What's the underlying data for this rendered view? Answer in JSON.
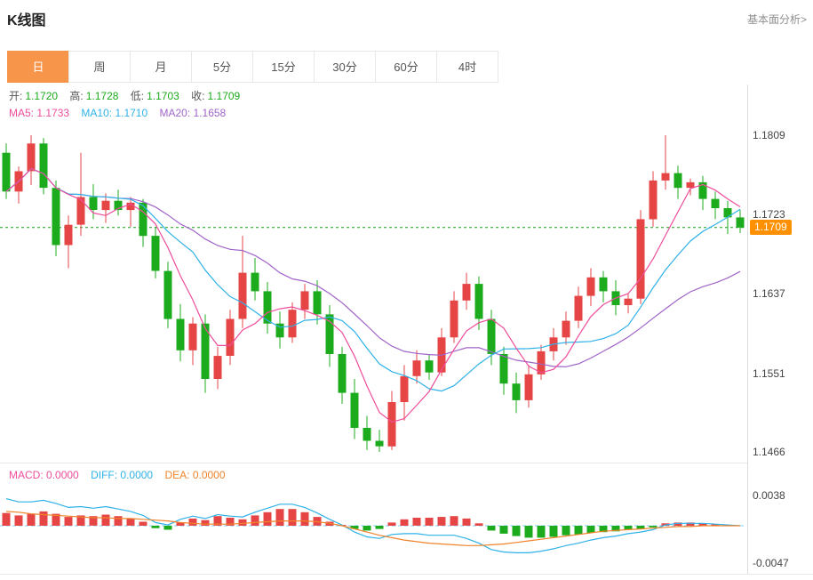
{
  "colors": {
    "accent_orange": "#f7954a",
    "up_red": "#e64545",
    "down_green": "#1cab1c",
    "ma5_pink": "#ef4d9b",
    "ma10_cyan": "#2fb2e8",
    "ma20_purple": "#a064c8",
    "macd_pink": "#ef4d9b",
    "diff_cyan": "#2fb2e8",
    "dea_orange": "#f0832a",
    "price_line_green": "#16a216",
    "badge_orange": "#ff9100",
    "zero_line_blue": "#7fd0f5"
  },
  "header": {
    "title": "K线图",
    "analysis_link": "基本面分析>"
  },
  "tabs": [
    {
      "label": "日",
      "active": true
    },
    {
      "label": "周",
      "active": false
    },
    {
      "label": "月",
      "active": false
    },
    {
      "label": "5分",
      "active": false
    },
    {
      "label": "15分",
      "active": false
    },
    {
      "label": "30分",
      "active": false
    },
    {
      "label": "60分",
      "active": false
    },
    {
      "label": "4时",
      "active": false
    }
  ],
  "main_chart": {
    "legend": {
      "open_label": "开:",
      "open_value": "1.1720",
      "high_label": "高:",
      "high_value": "1.1728",
      "low_label": "低:",
      "low_value": "1.1703",
      "close_label": "收:",
      "close_value": "1.1709",
      "ma5_label": "MA5:",
      "ma5_value": "1.1733",
      "ma10_label": "MA10:",
      "ma10_value": "1.1710",
      "ma20_label": "MA20:",
      "ma20_value": "1.1658"
    },
    "y_axis": [
      "1.1809",
      "1.1723",
      "1.1637",
      "1.1551",
      "1.1466"
    ],
    "price_badge": "1.1709"
  },
  "macd_panel": {
    "legend": {
      "macd_label": "MACD:",
      "macd_value": "0.0000",
      "diff_label": "DIFF:",
      "diff_value": "0.0000",
      "dea_label": "DEA:",
      "dea_value": "0.0000"
    },
    "y_axis": [
      "0.0038",
      "-0.0047"
    ]
  },
  "chart_data": [
    {
      "type": "candlestick",
      "panel": "price",
      "interval": "日",
      "y_axis_ticks": [
        1.1809,
        1.1723,
        1.1637,
        1.1551,
        1.1466
      ],
      "current_price": 1.1709,
      "last_candle": {
        "open": 1.172,
        "high": 1.1728,
        "low": 1.1703,
        "close": 1.1709
      },
      "ma_values": {
        "MA5": 1.1733,
        "MA10": 1.171,
        "MA20": 1.1658
      },
      "candles_ohlc": [
        [
          1.179,
          1.18,
          1.174,
          1.1748
        ],
        [
          1.1748,
          1.1775,
          1.1735,
          1.177
        ],
        [
          1.177,
          1.1809,
          1.1755,
          1.18
        ],
        [
          1.18,
          1.1806,
          1.1745,
          1.1752
        ],
        [
          1.1752,
          1.176,
          1.1678,
          1.169
        ],
        [
          1.169,
          1.1722,
          1.1665,
          1.1712
        ],
        [
          1.1712,
          1.179,
          1.17,
          1.1742
        ],
        [
          1.1742,
          1.1756,
          1.1718,
          1.1728
        ],
        [
          1.1728,
          1.1746,
          1.1714,
          1.1738
        ],
        [
          1.1738,
          1.175,
          1.1722,
          1.1728
        ],
        [
          1.1728,
          1.1742,
          1.171,
          1.1736
        ],
        [
          1.1736,
          1.174,
          1.1688,
          1.17
        ],
        [
          1.17,
          1.171,
          1.1654,
          1.1662
        ],
        [
          1.1662,
          1.1672,
          1.16,
          1.161
        ],
        [
          1.161,
          1.1626,
          1.1564,
          1.1576
        ],
        [
          1.1576,
          1.1612,
          1.156,
          1.1605
        ],
        [
          1.1605,
          1.1615,
          1.153,
          1.1545
        ],
        [
          1.1545,
          1.158,
          1.1534,
          1.157
        ],
        [
          1.157,
          1.162,
          1.156,
          1.161
        ],
        [
          1.161,
          1.17,
          1.16,
          1.166
        ],
        [
          1.166,
          1.1676,
          1.163,
          1.164
        ],
        [
          1.164,
          1.165,
          1.1594,
          1.1605
        ],
        [
          1.1605,
          1.1618,
          1.1578,
          1.159
        ],
        [
          1.159,
          1.1628,
          1.1584,
          1.162
        ],
        [
          1.162,
          1.1648,
          1.161,
          1.164
        ],
        [
          1.164,
          1.1652,
          1.1604,
          1.1615
        ],
        [
          1.1615,
          1.1625,
          1.1558,
          1.1572
        ],
        [
          1.1572,
          1.158,
          1.1518,
          1.153
        ],
        [
          1.153,
          1.1545,
          1.148,
          1.1492
        ],
        [
          1.1492,
          1.1505,
          1.1468,
          1.1478
        ],
        [
          1.1478,
          1.149,
          1.1466,
          1.1472
        ],
        [
          1.1472,
          1.1532,
          1.1468,
          1.152
        ],
        [
          1.152,
          1.156,
          1.15,
          1.1548
        ],
        [
          1.1548,
          1.1576,
          1.154,
          1.1565
        ],
        [
          1.1565,
          1.1572,
          1.1544,
          1.1552
        ],
        [
          1.1552,
          1.16,
          1.1548,
          1.159
        ],
        [
          1.159,
          1.164,
          1.1584,
          1.163
        ],
        [
          1.163,
          1.166,
          1.162,
          1.1648
        ],
        [
          1.1648,
          1.1656,
          1.1598,
          1.161
        ],
        [
          1.161,
          1.162,
          1.156,
          1.1572
        ],
        [
          1.1572,
          1.158,
          1.1528,
          1.154
        ],
        [
          1.154,
          1.1552,
          1.1508,
          1.1522
        ],
        [
          1.1522,
          1.156,
          1.1514,
          1.155
        ],
        [
          1.155,
          1.1582,
          1.1544,
          1.1575
        ],
        [
          1.1575,
          1.16,
          1.1565,
          1.159
        ],
        [
          1.159,
          1.1618,
          1.1582,
          1.1608
        ],
        [
          1.1608,
          1.1645,
          1.16,
          1.1635
        ],
        [
          1.1635,
          1.1665,
          1.1624,
          1.1655
        ],
        [
          1.1655,
          1.1662,
          1.1628,
          1.164
        ],
        [
          1.164,
          1.1652,
          1.1614,
          1.1625
        ],
        [
          1.1625,
          1.1638,
          1.1616,
          1.1632
        ],
        [
          1.1632,
          1.1728,
          1.1626,
          1.1718
        ],
        [
          1.1718,
          1.177,
          1.171,
          1.176
        ],
        [
          1.176,
          1.1809,
          1.175,
          1.1768
        ],
        [
          1.1768,
          1.1776,
          1.174,
          1.1752
        ],
        [
          1.1752,
          1.1762,
          1.1744,
          1.1758
        ],
        [
          1.1758,
          1.1765,
          1.1728,
          1.174
        ],
        [
          1.174,
          1.1748,
          1.1718,
          1.173
        ],
        [
          1.173,
          1.1738,
          1.1702,
          1.172
        ],
        [
          1.172,
          1.1728,
          1.1703,
          1.1709
        ]
      ]
    },
    {
      "type": "bar",
      "panel": "macd",
      "y_axis_ticks": [
        0.0038,
        -0.0047
      ],
      "macd": 0.0,
      "diff": 0.0,
      "dea": 0.0,
      "histogram": [
        0.0016,
        0.0013,
        0.0015,
        0.0018,
        0.0015,
        0.0011,
        0.0013,
        0.0012,
        0.0014,
        0.0012,
        0.0009,
        0.0005,
        -0.0003,
        -0.0005,
        0.0004,
        0.0009,
        0.0007,
        0.0012,
        0.001,
        0.0008,
        0.0013,
        0.0017,
        0.0021,
        0.0021,
        0.0017,
        0.0011,
        0.0005,
        0.0001,
        -0.0004,
        -0.0006,
        -0.0004,
        0.0004,
        0.0008,
        0.001,
        0.001,
        0.0011,
        0.0012,
        0.0009,
        0.0003,
        -0.0006,
        -0.001,
        -0.0013,
        -0.0015,
        -0.0015,
        -0.0014,
        -0.0012,
        -0.0011,
        -0.0009,
        -0.0008,
        -0.0007,
        -0.0005,
        -0.0004,
        -0.0002,
        0.0003,
        0.0004,
        0.0004,
        0.0003,
        0.0002,
        0.0001,
        0.0
      ],
      "dea_line": [
        0.0018,
        0.0017,
        0.0015,
        0.0014,
        0.0013,
        0.0012,
        0.0011,
        0.001,
        0.001,
        0.0009,
        0.0009,
        0.0008,
        0.0007,
        0.0006,
        0.0004,
        0.0003,
        0.0002,
        0.0002,
        0.0002,
        0.0003,
        0.0004,
        0.0005,
        0.0006,
        0.0006,
        0.0006,
        0.0005,
        0.0003,
        0.0,
        -0.0004,
        -0.0008,
        -0.0012,
        -0.0015,
        -0.0018,
        -0.002,
        -0.0022,
        -0.0023,
        -0.0024,
        -0.0025,
        -0.0025,
        -0.0024,
        -0.0023,
        -0.0021,
        -0.0019,
        -0.0017,
        -0.0015,
        -0.0013,
        -0.0011,
        -0.0009,
        -0.0007,
        -0.0006,
        -0.0005,
        -0.0004,
        -0.0003,
        -0.0002,
        -0.0001,
        -0.0001,
        0.0,
        0.0,
        0.0,
        0.0
      ]
    }
  ]
}
